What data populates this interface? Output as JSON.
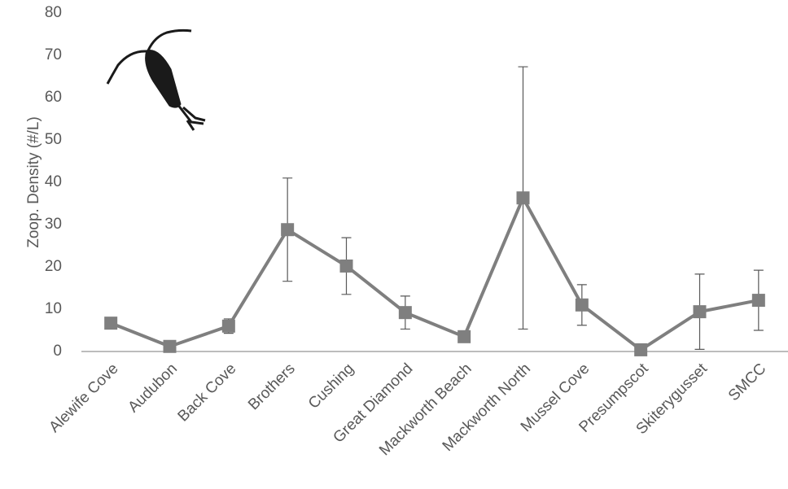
{
  "chart_data": {
    "type": "line",
    "y_label": "Zoop. Density (#/L)",
    "categories": [
      "Alewife Cove",
      "Audubon",
      "Back Cove",
      "Brothers",
      "Cushing",
      "Great Diamond",
      "Mackworth Beach",
      "Mackworth North",
      "Mussel Cove",
      "Presumpscot",
      "Skiterygusset",
      "SMCC"
    ],
    "series": [
      {
        "color": "#7f7f7f",
        "values": [
          6.7,
          1.2,
          6.0,
          28.8,
          20.2,
          9.2,
          3.5,
          36.3,
          11.0,
          0.4,
          9.4,
          12.1
        ],
        "errors": [
          null,
          null,
          1.7,
          12.2,
          6.7,
          3.9,
          null,
          31.0,
          4.8,
          null,
          8.9,
          7.1
        ]
      }
    ],
    "ylim": [
      0,
      80
    ],
    "yticks": [
      0,
      10,
      20,
      30,
      40,
      50,
      60,
      70,
      80
    ],
    "grid": false
  }
}
